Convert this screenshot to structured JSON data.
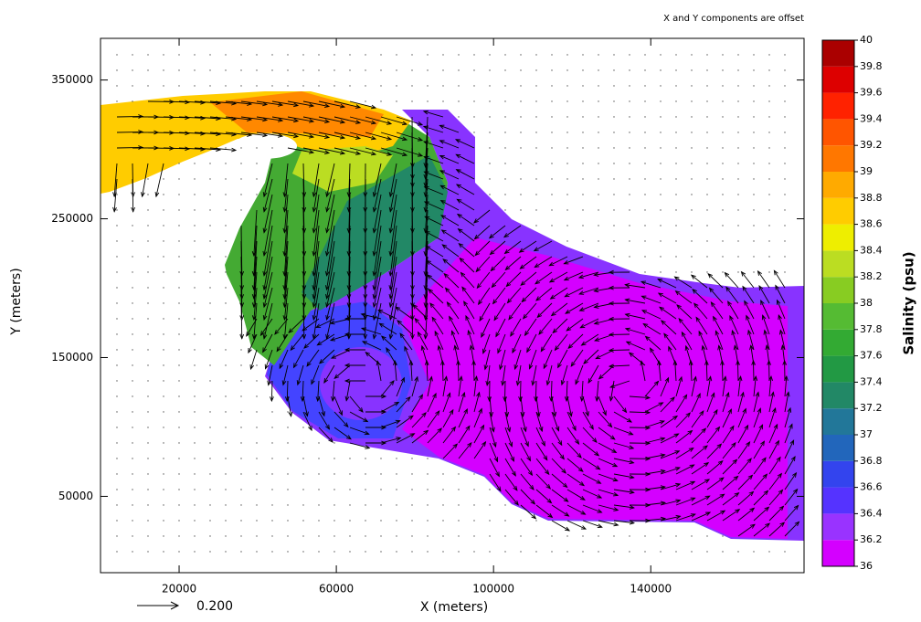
{
  "chart_data": {
    "type": "vector-field",
    "annotation": "X and Y components are offset",
    "x_label": "X (meters)",
    "y_label": "Y (meters)",
    "xlim": [
      0,
      179000
    ],
    "xticks": [
      20000,
      60000,
      100000,
      140000
    ],
    "ylim": [
      -5000,
      380000
    ],
    "yticks": [
      50000,
      150000,
      250000,
      350000
    ],
    "reference_vector_label": "0.200",
    "colorbar": {
      "label": "Salinity (psu)",
      "lim": [
        36,
        40
      ],
      "ticks": [
        36,
        36.2,
        36.4,
        36.6,
        36.8,
        37,
        37.2,
        37.4,
        37.6,
        37.8,
        38,
        38.2,
        38.4,
        38.6,
        38.8,
        39,
        39.2,
        39.4,
        39.6,
        39.8,
        40
      ],
      "colors": [
        "#d400ff",
        "#9933ff",
        "#5533ff",
        "#3344ee",
        "#2266bb",
        "#227799",
        "#228866",
        "#229944",
        "#33aa33",
        "#55bb33",
        "#88cc22",
        "#bbdd22",
        "#eeee00",
        "#ffcc00",
        "#ffaa00",
        "#ff7700",
        "#ff5500",
        "#ff2200",
        "#dd0000",
        "#aa0000"
      ]
    }
  }
}
